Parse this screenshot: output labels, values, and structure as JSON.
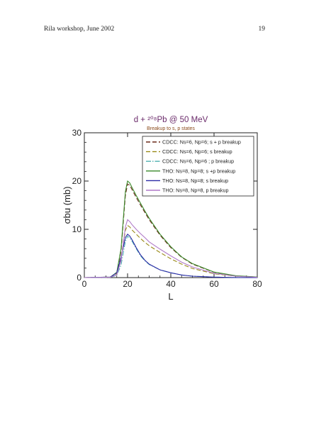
{
  "header": {
    "left": "Rila workshop, June 2002",
    "right": "19"
  },
  "chart_data": {
    "type": "line",
    "title": "d + ²⁰⁸Pb @ 50 MeV",
    "subtitle": "Breakup to s, p states",
    "xlabel": "L",
    "ylabel": "σbu (mb)",
    "xlim": [
      0,
      80
    ],
    "ylim": [
      0,
      30
    ],
    "xticks": [
      0,
      20,
      40,
      60,
      80
    ],
    "yticks": [
      0,
      10,
      20,
      30
    ],
    "legend_position": "top-right",
    "x": [
      0,
      12,
      15,
      17,
      19,
      20,
      21,
      22,
      24,
      26,
      28,
      30,
      35,
      40,
      45,
      50,
      60,
      70,
      80
    ],
    "series": [
      {
        "name": "CDCC: Ns=6, Np=6; s + p breakup",
        "color": "#6b2a1a",
        "dash": "6,3",
        "values": [
          0,
          0.1,
          1.0,
          5.5,
          17.0,
          19.4,
          19.1,
          18.3,
          16.6,
          15.0,
          13.5,
          12.0,
          8.8,
          6.2,
          4.2,
          2.8,
          1.1,
          0.35,
          0.1
        ]
      },
      {
        "name": "CDCC: Ns=6, Np=6; s breakup",
        "color": "#9a8a18",
        "dash": "6,3",
        "values": [
          0,
          0.08,
          0.8,
          4.0,
          9.8,
          10.8,
          10.5,
          9.9,
          9.0,
          8.1,
          7.3,
          6.6,
          5.2,
          3.9,
          2.8,
          1.9,
          0.8,
          0.3,
          0.1
        ]
      },
      {
        "name": "CDCC: Ns=6, Np=6 ; p breakup",
        "color": "#4fb0b0",
        "dash": "7,2,1.5,2",
        "values": [
          0,
          0.05,
          0.5,
          2.6,
          7.5,
          8.6,
          8.2,
          7.6,
          6.0,
          4.5,
          3.5,
          2.7,
          1.6,
          1.0,
          0.55,
          0.3,
          0.1,
          0.02,
          0
        ]
      },
      {
        "name": "THO: Ns=8, Np=8; s +p breakup",
        "color": "#3a8a2a",
        "dash": "",
        "values": [
          0,
          0.1,
          1.1,
          6.0,
          17.8,
          20.0,
          19.6,
          18.7,
          17.0,
          15.4,
          13.8,
          12.3,
          9.0,
          6.4,
          4.3,
          2.9,
          1.15,
          0.4,
          0.12
        ]
      },
      {
        "name": "THO: Ns=8, Np=8; s breakup",
        "color": "#2a2aa6",
        "dash": "",
        "values": [
          0,
          0.1,
          1.0,
          4.2,
          8.3,
          9.0,
          8.6,
          7.9,
          6.2,
          4.7,
          3.6,
          2.8,
          1.6,
          1.0,
          0.55,
          0.3,
          0.1,
          0.02,
          0
        ]
      },
      {
        "name": "THO: Ns=8, Np=8, p breakup",
        "color": "#b07ac8",
        "dash": "",
        "values": [
          0,
          0.06,
          0.6,
          3.5,
          10.5,
          12.0,
          11.6,
          11.0,
          10.0,
          9.1,
          8.3,
          7.4,
          5.9,
          4.5,
          3.2,
          2.2,
          0.9,
          0.3,
          0.08
        ]
      }
    ]
  }
}
